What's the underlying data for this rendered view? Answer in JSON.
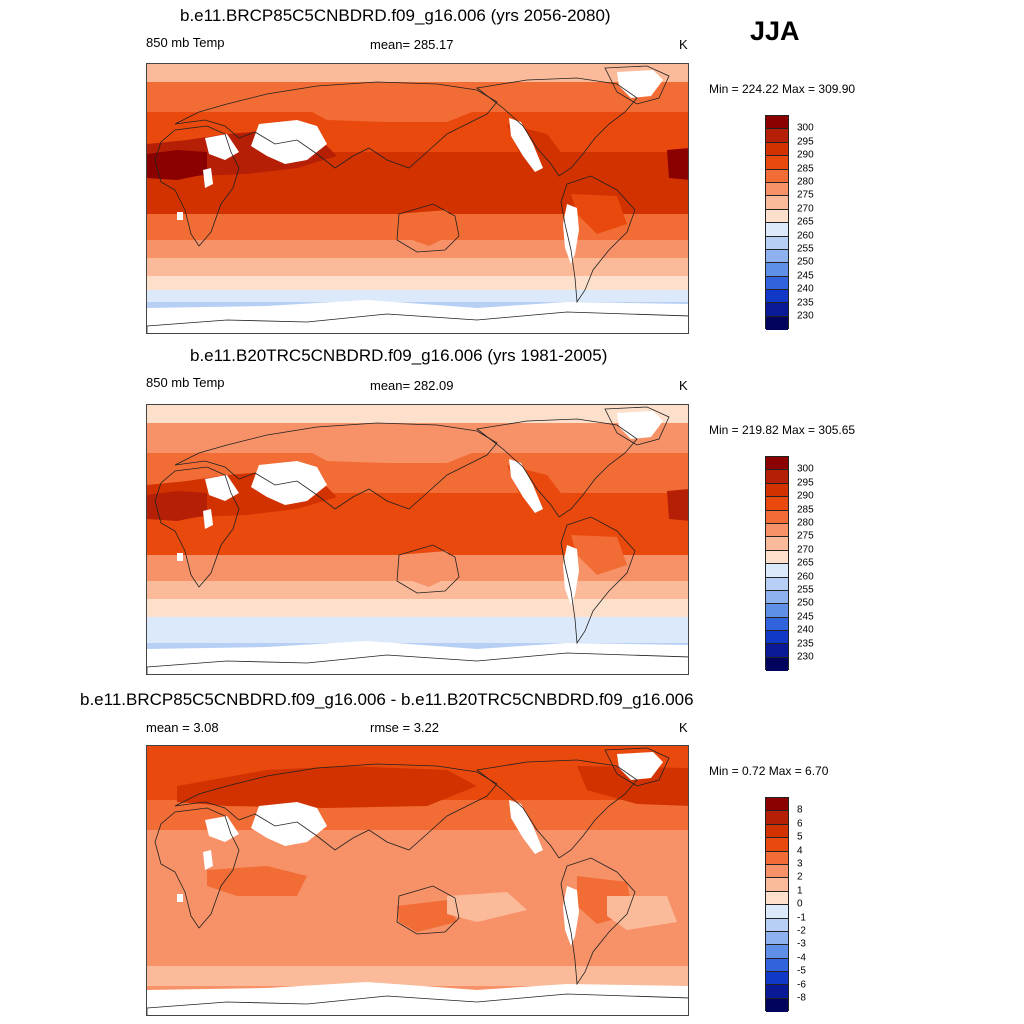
{
  "season": "JJA",
  "panels": [
    {
      "title": "b.e11.BRCP85C5CNBDRD.f09_g16.006 (yrs 2056-2080)",
      "left_label": "850 mb Temp",
      "center_label": "mean= 285.17",
      "units": "K",
      "minmax": "Min = 224.22 Max = 309.90",
      "palette": "temp",
      "colorbar_labels": [
        "300",
        "295",
        "290",
        "285",
        "280",
        "275",
        "270",
        "265",
        "260",
        "255",
        "250",
        "245",
        "240",
        "235",
        "230"
      ]
    },
    {
      "title": "b.e11.B20TRC5CNBDRD.f09_g16.006 (yrs 1981-2005)",
      "left_label": "850 mb Temp",
      "center_label": "mean= 282.09",
      "units": "K",
      "minmax": "Min = 219.82 Max = 305.65",
      "palette": "temp",
      "colorbar_labels": [
        "300",
        "295",
        "290",
        "285",
        "280",
        "275",
        "270",
        "265",
        "260",
        "255",
        "250",
        "245",
        "240",
        "235",
        "230"
      ]
    },
    {
      "title": "b.e11.BRCP85C5CNBDRD.f09_g16.006 - b.e11.B20TRC5CNBDRD.f09_g16.006",
      "left_label": "mean =   3.08",
      "center_label": "rmse =   3.22",
      "units": "K",
      "minmax": "Min =   0.72 Max =   6.70",
      "palette": "diff",
      "colorbar_labels": [
        "8",
        "6",
        "5",
        "4",
        "3",
        "2",
        "1",
        "0",
        "-1",
        "-2",
        "-3",
        "-4",
        "-5",
        "-6",
        "-8"
      ]
    }
  ],
  "colors": {
    "temp_scale": [
      "#8b0000",
      "#b51f05",
      "#d23200",
      "#e9490c",
      "#f26d35",
      "#f79168",
      "#fbbb9a",
      "#fde0cc",
      "#dce9fb",
      "#b7cff5",
      "#8db2ef",
      "#5f8fe6",
      "#3063dc",
      "#1238c8",
      "#0a1a96",
      "#02035c"
    ],
    "diff_scale": [
      "#8b0000",
      "#b51f05",
      "#d23200",
      "#e9490c",
      "#f26d35",
      "#f79168",
      "#fbbb9a",
      "#fde0cc",
      "#dce9fb",
      "#b7cff5",
      "#8db2ef",
      "#5f8fe6",
      "#3063dc",
      "#1238c8",
      "#0a1a96",
      "#02035c"
    ],
    "missing": "#ffffff",
    "coastline": "#222222"
  }
}
